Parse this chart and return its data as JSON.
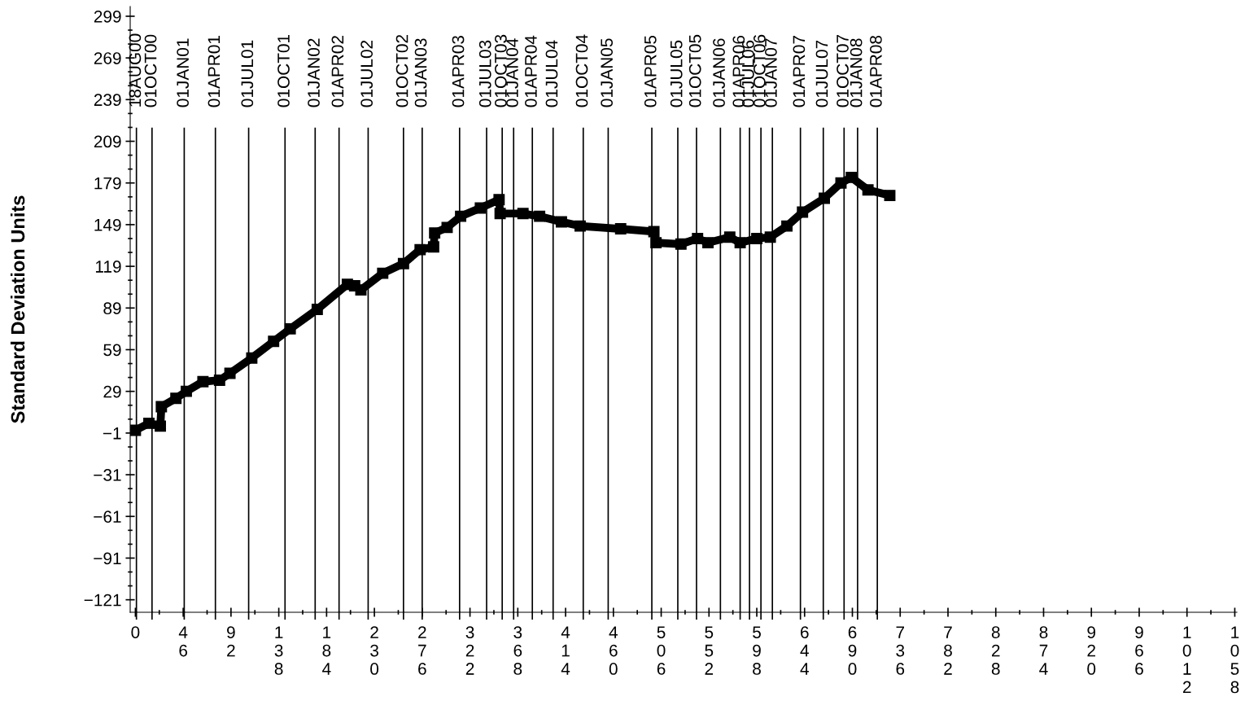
{
  "chart_data": {
    "type": "line",
    "ylabel": "Standard Deviation Units",
    "xlim": [
      -5,
      1060
    ],
    "xticks": [
      0,
      46,
      92,
      138,
      184,
      230,
      276,
      322,
      368,
      414,
      460,
      506,
      552,
      598,
      644,
      690,
      736,
      782,
      828,
      874,
      920,
      966,
      1012,
      1058
    ],
    "ylim": [
      -130,
      306
    ],
    "yticks": [
      -121,
      -91,
      -61,
      -31,
      -1,
      29,
      59,
      89,
      119,
      149,
      179,
      209,
      239,
      269,
      299
    ],
    "grid": false,
    "marker": "square",
    "line_style": "solid",
    "series": [
      {
        "color": "#000000",
        "x": [
          0,
          13,
          24,
          25,
          39,
          49,
          65,
          81,
          91,
          112,
          133,
          149,
          175,
          204,
          211,
          217,
          238,
          258,
          274,
          287,
          288,
          300,
          313,
          332,
          350,
          351,
          373,
          389,
          410,
          428,
          467,
          499,
          501,
          525,
          541,
          551,
          572,
          582,
          598,
          611,
          627,
          642,
          663,
          679,
          689,
          705,
          726
        ],
        "values": [
          1,
          6,
          4,
          18,
          24,
          29,
          36,
          37,
          42,
          53,
          65,
          74,
          88,
          106,
          105,
          102,
          114,
          121,
          131,
          133,
          143,
          147,
          155,
          161,
          167,
          157,
          157,
          155,
          151,
          148,
          146,
          144,
          136,
          135,
          139,
          136,
          140,
          136,
          139,
          140,
          148,
          158,
          168,
          179,
          183,
          174,
          170
        ]
      }
    ],
    "ref_lines": [
      {
        "axis": "x",
        "value": 1,
        "label": "18AUG00"
      },
      {
        "axis": "x",
        "value": 16,
        "label": "01OCT00"
      },
      {
        "axis": "x",
        "value": 47,
        "label": "01JAN01"
      },
      {
        "axis": "x",
        "value": 77,
        "label": "01APR01"
      },
      {
        "axis": "x",
        "value": 109,
        "label": "01JUL01"
      },
      {
        "axis": "x",
        "value": 144,
        "label": "01OCT01"
      },
      {
        "axis": "x",
        "value": 173,
        "label": "01JAN02"
      },
      {
        "axis": "x",
        "value": 196,
        "label": "01APR02"
      },
      {
        "axis": "x",
        "value": 224,
        "label": "01JUL02"
      },
      {
        "axis": "x",
        "value": 258,
        "label": "01OCT02"
      },
      {
        "axis": "x",
        "value": 276,
        "label": "01JAN03"
      },
      {
        "axis": "x",
        "value": 312,
        "label": "01APR03"
      },
      {
        "axis": "x",
        "value": 338,
        "label": "01JUL03"
      },
      {
        "axis": "x",
        "value": 353,
        "label": "01OCT03"
      },
      {
        "axis": "x",
        "value": 364,
        "label": "01JAN04"
      },
      {
        "axis": "x",
        "value": 382,
        "label": "01APR04"
      },
      {
        "axis": "x",
        "value": 402,
        "label": "01JUL04"
      },
      {
        "axis": "x",
        "value": 431,
        "label": "01OCT04"
      },
      {
        "axis": "x",
        "value": 455,
        "label": "01JAN05"
      },
      {
        "axis": "x",
        "value": 497,
        "label": "01APR05"
      },
      {
        "axis": "x",
        "value": 522,
        "label": "01JUL05"
      },
      {
        "axis": "x",
        "value": 540,
        "label": "01OCT05"
      },
      {
        "axis": "x",
        "value": 563,
        "label": "01JAN06"
      },
      {
        "axis": "x",
        "value": 582,
        "label": "01APR06"
      },
      {
        "axis": "x",
        "value": 591,
        "label": "01JUL06"
      },
      {
        "axis": "x",
        "value": 602,
        "label": "01OCT06"
      },
      {
        "axis": "x",
        "value": 613,
        "label": "01JAN07"
      },
      {
        "axis": "x",
        "value": 640,
        "label": "01APR07"
      },
      {
        "axis": "x",
        "value": 662,
        "label": "01JUL07"
      },
      {
        "axis": "x",
        "value": 682,
        "label": "01OCT07"
      },
      {
        "axis": "x",
        "value": 695,
        "label": "01JAN08"
      },
      {
        "axis": "x",
        "value": 714,
        "label": "01APR08"
      }
    ]
  }
}
